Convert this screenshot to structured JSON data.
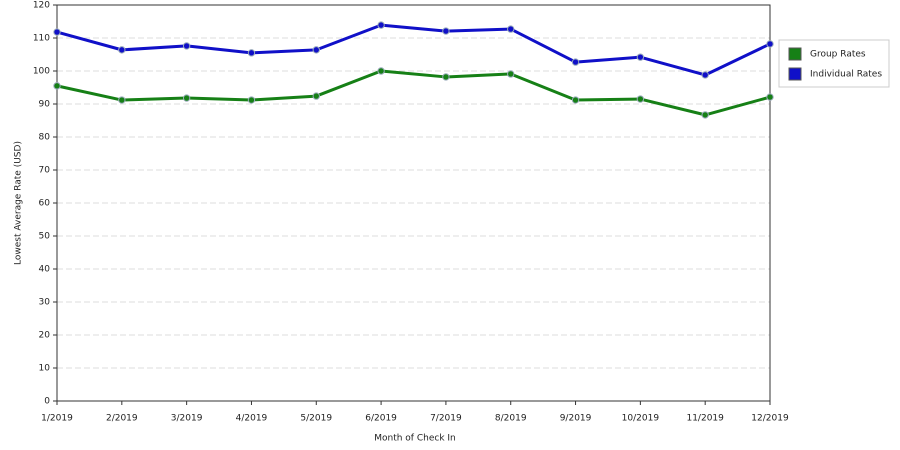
{
  "chart_data": {
    "type": "line",
    "x_label": "Month of Check In",
    "y_label": "Lowest Average Rate (USD)",
    "categories": [
      "1/2019",
      "2/2019",
      "3/2019",
      "4/2019",
      "5/2019",
      "6/2019",
      "7/2019",
      "8/2019",
      "9/2019",
      "10/2019",
      "11/2019",
      "12/2019"
    ],
    "series": [
      {
        "name": "Group Rates",
        "color": "#168016",
        "values": [
          95.5,
          91.2,
          91.8,
          91.2,
          92.4,
          100,
          98.2,
          99.1,
          91.2,
          91.5,
          86.7,
          92.1
        ]
      },
      {
        "name": "Individual Rates",
        "color": "#1010c8",
        "values": [
          111.8,
          106.4,
          107.6,
          105.5,
          106.4,
          113.9,
          112.1,
          112.7,
          102.7,
          104.2,
          98.8,
          108.2
        ]
      }
    ],
    "ylim": [
      0,
      120
    ],
    "yticks": [
      0,
      10,
      20,
      30,
      40,
      50,
      60,
      70,
      80,
      90,
      100,
      110,
      120
    ],
    "grid": true,
    "legend": "right"
  }
}
